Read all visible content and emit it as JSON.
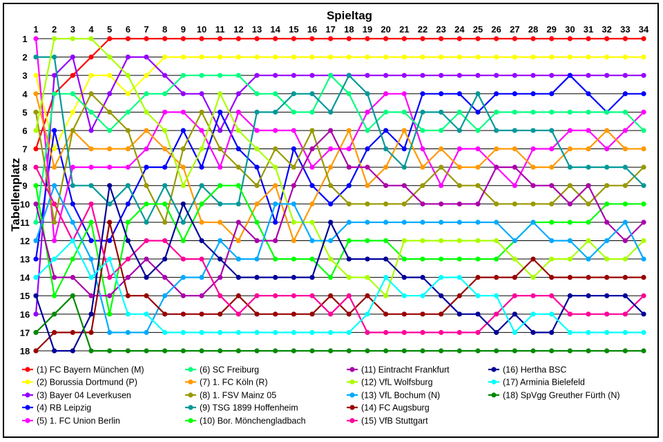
{
  "chart_data": {
    "type": "line",
    "xlabel": "Spieltag",
    "ylabel": "Tabellenplatz",
    "x": [
      1,
      2,
      3,
      4,
      5,
      6,
      7,
      8,
      9,
      10,
      11,
      12,
      13,
      14,
      15,
      16,
      17,
      18,
      19,
      20,
      21,
      22,
      23,
      24,
      25,
      26,
      27,
      28,
      29,
      30,
      31,
      32,
      33,
      34
    ],
    "y_ticks": [
      1,
      2,
      3,
      4,
      5,
      6,
      7,
      8,
      9,
      10,
      11,
      12,
      13,
      14,
      15,
      16,
      17,
      18
    ],
    "ylim": [
      1,
      18
    ],
    "y_inverted": true,
    "grid": "horizontal",
    "legend_position": "bottom",
    "series": [
      {
        "name": "(1) FC Bayern München (M)",
        "color": "#ff0000",
        "values": [
          7,
          4,
          3,
          2,
          1,
          1,
          1,
          1,
          1,
          1,
          1,
          1,
          1,
          1,
          1,
          1,
          1,
          1,
          1,
          1,
          1,
          1,
          1,
          1,
          1,
          1,
          1,
          1,
          1,
          1,
          1,
          1,
          1,
          1
        ]
      },
      {
        "name": "(2) Borussia Dortmund (P)",
        "color": "#ffff00",
        "values": [
          3,
          7,
          5,
          3,
          3,
          4,
          3,
          2,
          2,
          2,
          2,
          2,
          2,
          2,
          2,
          2,
          2,
          2,
          2,
          2,
          2,
          2,
          2,
          2,
          2,
          2,
          2,
          2,
          2,
          2,
          2,
          2,
          2,
          2
        ]
      },
      {
        "name": "(3) Bayer 04 Leverkusen",
        "color": "#9400ff",
        "values": [
          16,
          3,
          2,
          6,
          4,
          2,
          2,
          3,
          4,
          4,
          6,
          4,
          3,
          3,
          3,
          3,
          3,
          3,
          3,
          3,
          3,
          3,
          3,
          3,
          3,
          3,
          3,
          3,
          3,
          3,
          3,
          3,
          3,
          3
        ]
      },
      {
        "name": "(4) RB Leipzig",
        "color": "#0000ff",
        "values": [
          13,
          6,
          10,
          12,
          12,
          10,
          8,
          8,
          6,
          8,
          5,
          7,
          8,
          11,
          7,
          9,
          10,
          9,
          7,
          6,
          7,
          4,
          4,
          4,
          5,
          4,
          4,
          4,
          4,
          3,
          4,
          5,
          4,
          4
        ]
      },
      {
        "name": "(5) 1. FC Union Berlin",
        "color": "#ff00ff",
        "values": [
          1,
          12,
          8,
          8,
          8,
          8,
          7,
          5,
          5,
          6,
          8,
          5,
          6,
          6,
          6,
          8,
          7,
          7,
          5,
          4,
          4,
          7,
          9,
          7,
          7,
          8,
          9,
          7,
          7,
          6,
          6,
          7,
          6,
          5
        ]
      },
      {
        "name": "(6) SC Freiburg",
        "color": "#00ff80",
        "values": [
          11,
          4,
          4,
          5,
          6,
          5,
          4,
          4,
          3,
          3,
          3,
          3,
          4,
          4,
          5,
          5,
          3,
          4,
          6,
          5,
          5,
          6,
          6,
          5,
          6,
          5,
          5,
          5,
          5,
          5,
          5,
          5,
          5,
          6
        ]
      },
      {
        "name": "(7) 1. FC Köln (R)",
        "color": "#ff9900",
        "values": [
          4,
          8,
          6,
          7,
          7,
          7,
          6,
          7,
          8,
          11,
          11,
          12,
          10,
          9,
          12,
          10,
          8,
          6,
          9,
          8,
          6,
          8,
          7,
          8,
          8,
          7,
          7,
          8,
          8,
          7,
          7,
          6,
          7,
          7
        ]
      },
      {
        "name": "(8) 1. FSV Mainz 05",
        "color": "#999900",
        "values": [
          5,
          11,
          6,
          4,
          5,
          6,
          9,
          11,
          7,
          5,
          7,
          8,
          9,
          7,
          8,
          6,
          9,
          10,
          10,
          10,
          10,
          9,
          8,
          9,
          9,
          10,
          10,
          10,
          10,
          9,
          10,
          9,
          9,
          8
        ]
      },
      {
        "name": "(9) TSG 1899 Hoffenheim",
        "color": "#009999",
        "values": [
          2,
          2,
          9,
          9,
          10,
          9,
          11,
          9,
          11,
          9,
          10,
          10,
          5,
          5,
          4,
          4,
          5,
          3,
          4,
          7,
          8,
          5,
          5,
          6,
          4,
          6,
          6,
          6,
          6,
          8,
          8,
          8,
          8,
          9
        ]
      },
      {
        "name": "(10) Bor. Mönchengladbach",
        "color": "#00ff00",
        "values": [
          9,
          15,
          13,
          11,
          16,
          11,
          10,
          10,
          12,
          10,
          9,
          9,
          11,
          13,
          13,
          13,
          14,
          12,
          12,
          12,
          13,
          13,
          13,
          13,
          13,
          13,
          12,
          11,
          11,
          11,
          11,
          10,
          10,
          10
        ]
      },
      {
        "name": "(11) Eintracht Frankfurt",
        "color": "#aa00aa",
        "values": [
          10,
          14,
          14,
          15,
          15,
          14,
          13,
          14,
          15,
          15,
          14,
          11,
          12,
          12,
          9,
          7,
          6,
          8,
          8,
          9,
          9,
          10,
          10,
          10,
          10,
          8,
          8,
          9,
          9,
          10,
          9,
          11,
          12,
          11
        ]
      },
      {
        "name": "(12) VfL Wolfsburg",
        "color": "#aaff00",
        "values": [
          6,
          1,
          1,
          1,
          2,
          3,
          5,
          6,
          9,
          7,
          4,
          6,
          7,
          8,
          11,
          11,
          13,
          14,
          14,
          15,
          12,
          12,
          12,
          12,
          12,
          12,
          13,
          14,
          13,
          13,
          12,
          13,
          13,
          12
        ]
      },
      {
        "name": "(13) VfL Bochum (N)",
        "color": "#00aaff",
        "values": [
          12,
          9,
          11,
          13,
          17,
          17,
          17,
          15,
          14,
          14,
          12,
          13,
          13,
          10,
          10,
          12,
          12,
          11,
          11,
          11,
          11,
          11,
          11,
          11,
          11,
          11,
          12,
          11,
          12,
          12,
          13,
          12,
          11,
          13
        ]
      },
      {
        "name": "(14) FC Augsburg",
        "color": "#990000",
        "values": [
          18,
          17,
          17,
          17,
          11,
          15,
          15,
          16,
          16,
          16,
          16,
          15,
          16,
          16,
          16,
          16,
          15,
          16,
          15,
          16,
          16,
          16,
          16,
          15,
          14,
          14,
          14,
          13,
          14,
          14,
          14,
          14,
          14,
          14
        ]
      },
      {
        "name": "(15) VfB Stuttgart",
        "color": "#ff0099",
        "values": [
          8,
          10,
          12,
          10,
          14,
          13,
          12,
          12,
          13,
          13,
          15,
          16,
          15,
          15,
          15,
          15,
          16,
          15,
          17,
          17,
          17,
          17,
          17,
          17,
          17,
          16,
          15,
          15,
          15,
          16,
          16,
          16,
          16,
          15
        ]
      },
      {
        "name": "(16) Hertha BSC",
        "color": "#000099",
        "values": [
          15,
          18,
          18,
          16,
          9,
          12,
          14,
          13,
          10,
          12,
          13,
          14,
          14,
          14,
          14,
          14,
          11,
          13,
          13,
          13,
          14,
          14,
          15,
          16,
          16,
          17,
          16,
          17,
          17,
          15,
          15,
          15,
          15,
          16
        ]
      },
      {
        "name": "(17) Arminia Bielefeld",
        "color": "#00ffff",
        "values": [
          14,
          13,
          12,
          14,
          13,
          16,
          16,
          17,
          17,
          17,
          17,
          17,
          17,
          17,
          17,
          17,
          17,
          17,
          16,
          14,
          15,
          15,
          14,
          14,
          15,
          15,
          17,
          16,
          16,
          17,
          17,
          17,
          17,
          17
        ]
      },
      {
        "name": "(18) SpVgg Greuther Fürth (N)",
        "color": "#008800",
        "values": [
          17,
          16,
          15,
          18,
          18,
          18,
          18,
          18,
          18,
          18,
          18,
          18,
          18,
          18,
          18,
          18,
          18,
          18,
          18,
          18,
          18,
          18,
          18,
          18,
          18,
          18,
          18,
          18,
          18,
          18,
          18,
          18,
          18,
          18
        ]
      }
    ]
  }
}
